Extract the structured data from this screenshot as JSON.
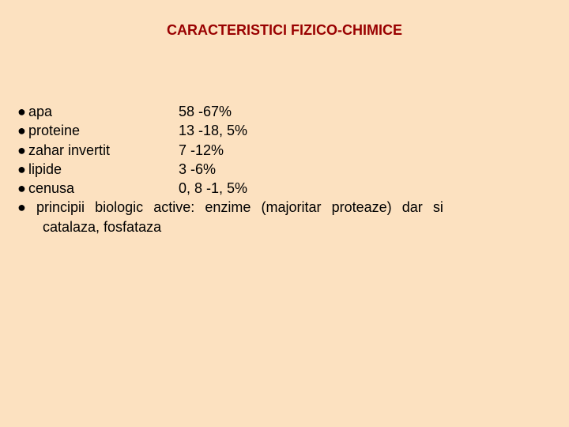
{
  "title": "CARACTERISTICI FIZICO-CHIMICE",
  "rows": [
    {
      "bullet": "●",
      "label": " apa",
      "value": "58 -67%"
    },
    {
      "bullet": "●",
      "label": " proteine",
      "value": "13 -18, 5%"
    },
    {
      "bullet": "●",
      "label": " zahar invertit",
      "value": "7 -12%"
    },
    {
      "bullet": "●",
      "label": " lipide",
      "value": "3 -6%"
    },
    {
      "bullet": "●",
      "label": "cenusa",
      "value": "0, 8 -1, 5%"
    }
  ],
  "long_line1": "● principii biologic active: enzime (majoritar proteaze) dar si",
  "long_line2": "catalaza, fosfataza"
}
